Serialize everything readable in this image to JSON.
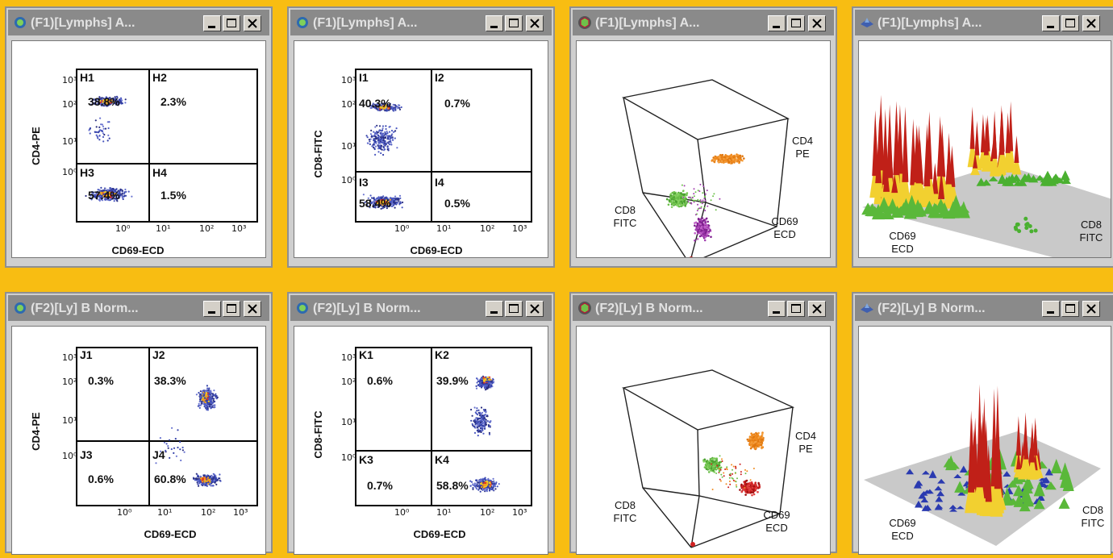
{
  "colors": {
    "background": "#f8bd12",
    "titlebar": "#8a8a8a",
    "orange": "#f08a1e",
    "green": "#6cc04a",
    "magenta": "#a23fb0",
    "red": "#cc1f1f",
    "blue": "#3340a8"
  },
  "buttons": {
    "minimize": "_",
    "maximize": "□",
    "close": "✕"
  },
  "top": {
    "w1": {
      "title": "(F1)[Lymphs] A...",
      "icon": "dotplot-icon",
      "xlabel": "CD69-ECD",
      "ylabel": "CD4-PE",
      "x_ticks": [
        "10⁰",
        "10¹",
        "10²",
        "10³"
      ],
      "y_ticks": [
        "10³",
        "10²",
        "10¹",
        "10⁰"
      ],
      "quadrants": [
        {
          "name": "H1",
          "value": "38.8%"
        },
        {
          "name": "H2",
          "value": "2.3%"
        },
        {
          "name": "H3",
          "value": "57.4%"
        },
        {
          "name": "H4",
          "value": "1.5%"
        }
      ]
    },
    "w2": {
      "title": "(F1)[Lymphs] A...",
      "icon": "dotplot-icon",
      "xlabel": "CD69-ECD",
      "ylabel": "CD8-FITC",
      "x_ticks": [
        "10⁰",
        "10¹",
        "10²",
        "10³"
      ],
      "y_ticks": [
        "10³",
        "10²",
        "10¹",
        "10⁰"
      ],
      "quadrants": [
        {
          "name": "I1",
          "value": "40.3%"
        },
        {
          "name": "I2",
          "value": "0.7%"
        },
        {
          "name": "I3",
          "value": "58.4%"
        },
        {
          "name": "I4",
          "value": "0.5%"
        }
      ]
    },
    "w3": {
      "title": "(F1)[Lymphs] A...",
      "icon": "cube-icon",
      "labels": {
        "cd4": [
          "CD4",
          "PE"
        ],
        "cd8": [
          "CD8",
          "FITC"
        ],
        "cd69": [
          "CD69",
          "ECD"
        ]
      }
    },
    "w4": {
      "title": "(F1)[Lymphs] A...",
      "icon": "surface-icon",
      "labels": {
        "cd69": [
          "CD69",
          "ECD"
        ],
        "cd8": [
          "CD8",
          "FITC"
        ]
      }
    }
  },
  "bottom": {
    "w1": {
      "title": "(F2)[Ly] B Norm...",
      "icon": "dotplot-icon",
      "xlabel": "CD69-ECD",
      "ylabel": "CD4-PE",
      "x_ticks": [
        "10⁰",
        "10¹",
        "10²",
        "10³"
      ],
      "y_ticks": [
        "10³",
        "10²",
        "10¹",
        "10⁰"
      ],
      "quadrants": [
        {
          "name": "J1",
          "value": "0.3%"
        },
        {
          "name": "J2",
          "value": "38.3%"
        },
        {
          "name": "J3",
          "value": "0.6%"
        },
        {
          "name": "J4",
          "value": "60.8%"
        }
      ]
    },
    "w2": {
      "title": "(F2)[Ly] B Norm...",
      "icon": "dotplot-icon",
      "xlabel": "CD69-ECD",
      "ylabel": "CD8-FITC",
      "x_ticks": [
        "10⁰",
        "10¹",
        "10²",
        "10³"
      ],
      "y_ticks": [
        "10³",
        "10²",
        "10¹",
        "10⁰"
      ],
      "quadrants": [
        {
          "name": "K1",
          "value": "0.6%"
        },
        {
          "name": "K2",
          "value": "39.9%"
        },
        {
          "name": "K3",
          "value": "0.7%"
        },
        {
          "name": "K4",
          "value": "58.8%"
        }
      ]
    },
    "w3": {
      "title": "(F2)[Ly] B Norm...",
      "icon": "cube-icon",
      "labels": {
        "cd4": [
          "CD4",
          "PE"
        ],
        "cd8": [
          "CD8",
          "FITC"
        ],
        "cd69": [
          "CD69",
          "ECD"
        ]
      }
    },
    "w4": {
      "title": "(F2)[Ly] B Norm...",
      "icon": "surface-icon",
      "labels": {
        "cd69": [
          "CD69",
          "ECD"
        ],
        "cd8": [
          "CD8",
          "FITC"
        ]
      }
    }
  }
}
